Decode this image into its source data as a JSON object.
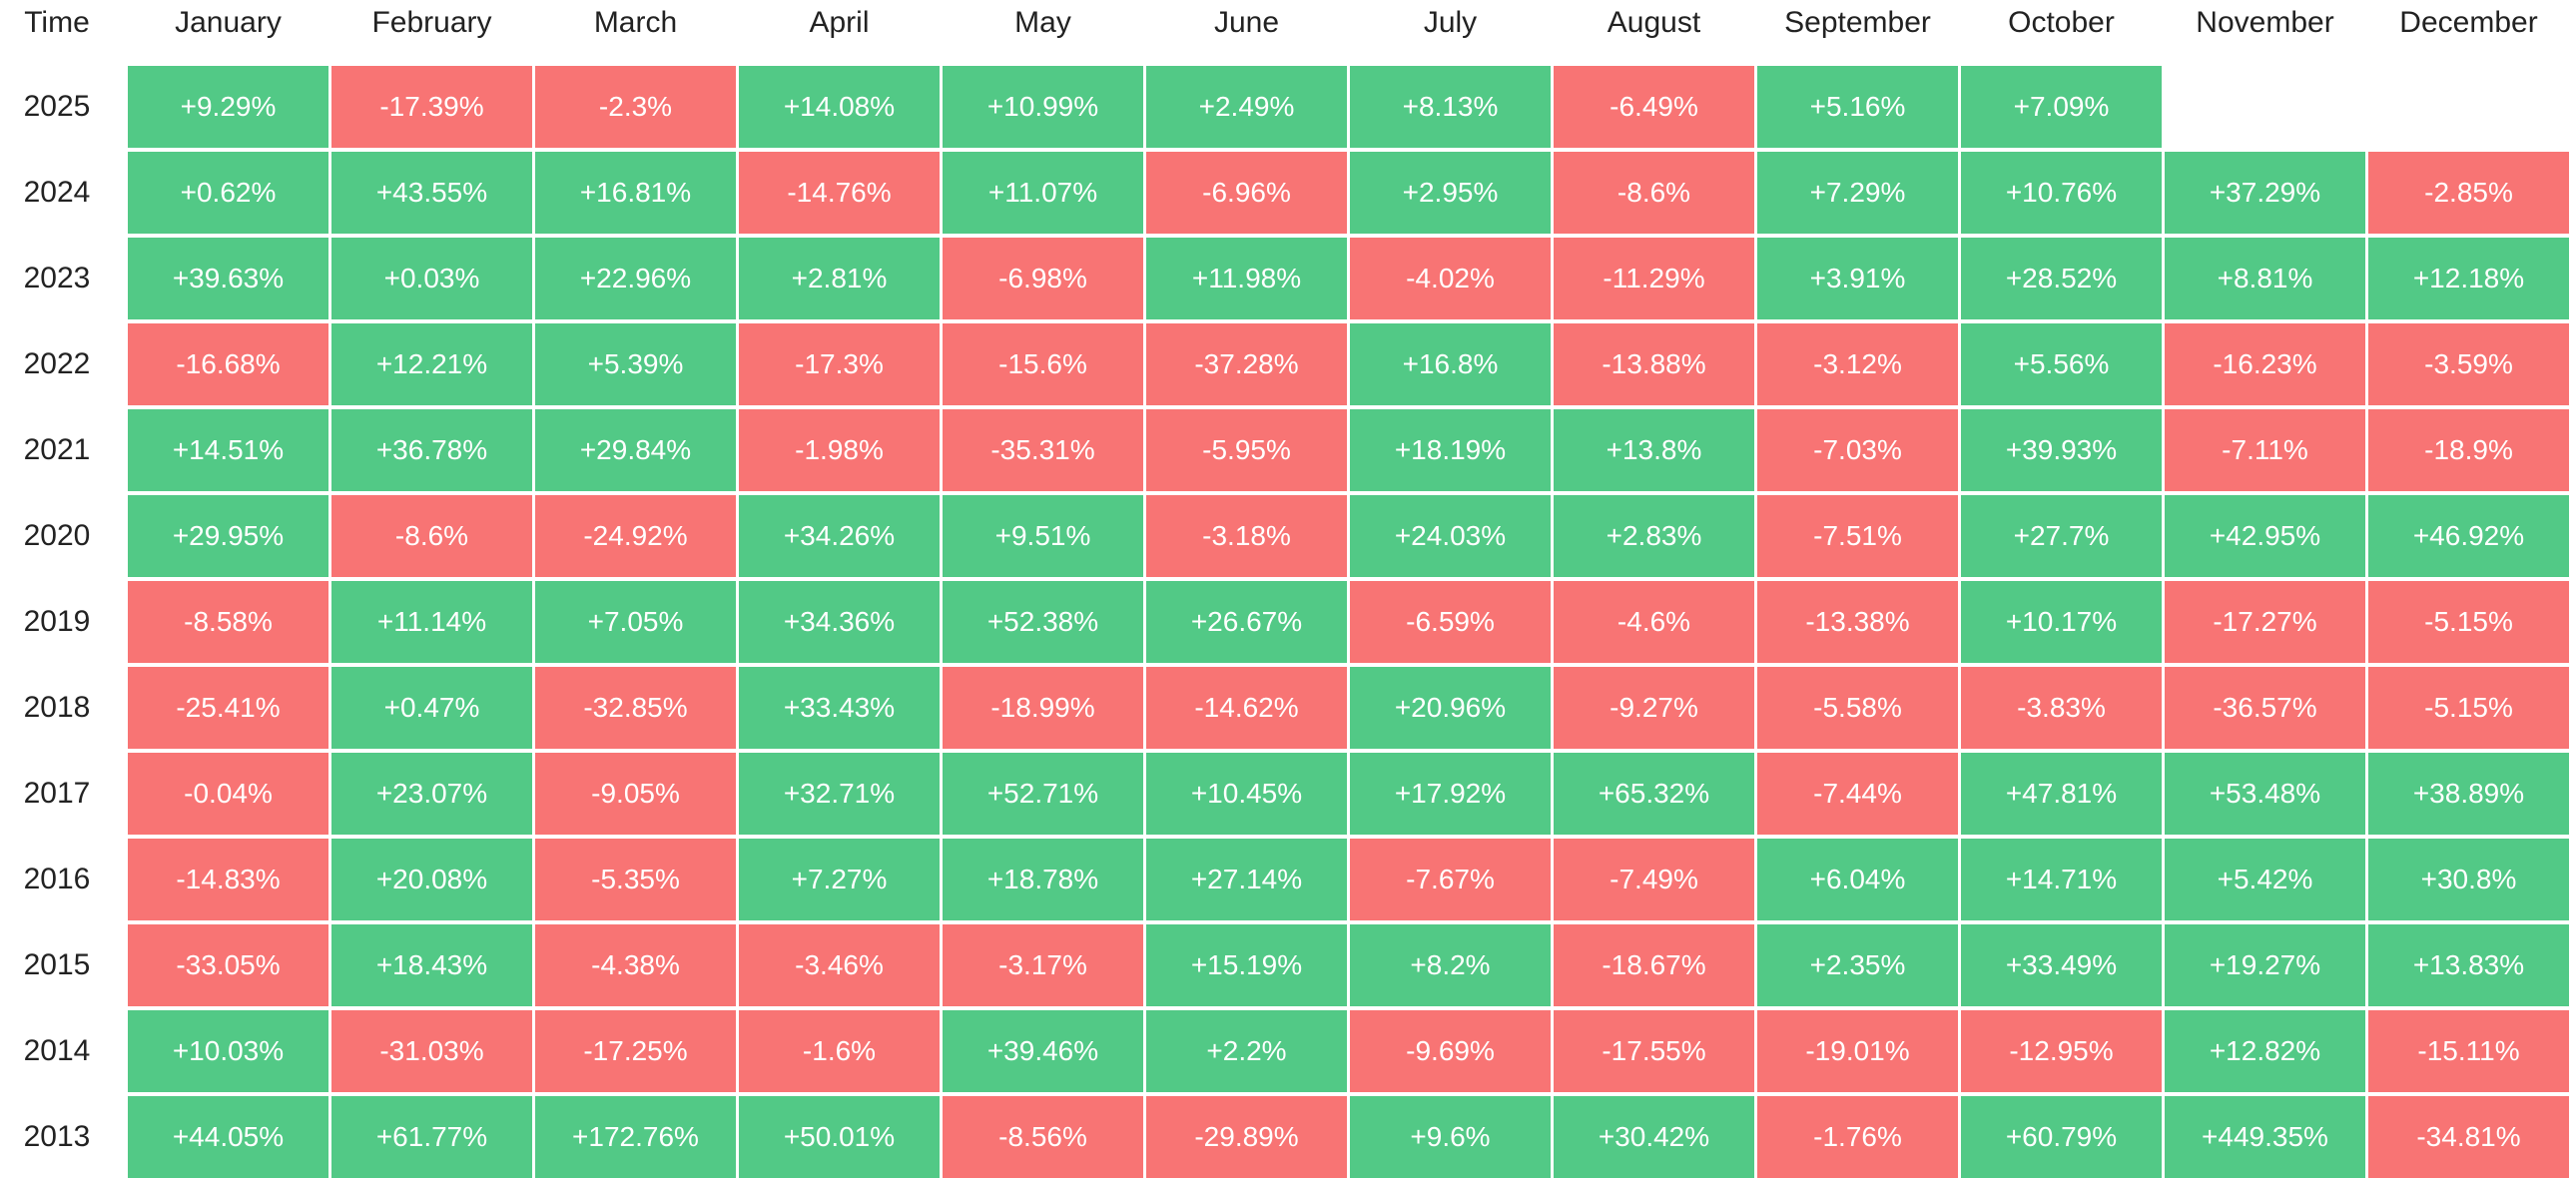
{
  "table": {
    "header": [
      "Time",
      "January",
      "February",
      "March",
      "April",
      "May",
      "June",
      "July",
      "August",
      "September",
      "October",
      "November",
      "December"
    ],
    "colors": {
      "up": "#52c986",
      "down": "#f87474"
    },
    "rows": [
      {
        "year": "2025",
        "cells": [
          "+9.29%",
          "-17.39%",
          "-2.3%",
          "+14.08%",
          "+10.99%",
          "+2.49%",
          "+8.13%",
          "-6.49%",
          "+5.16%",
          "+7.09%"
        ]
      },
      {
        "year": "2024",
        "cells": [
          "+0.62%",
          "+43.55%",
          "+16.81%",
          "-14.76%",
          "+11.07%",
          "-6.96%",
          "+2.95%",
          "-8.6%",
          "+7.29%",
          "+10.76%",
          "+37.29%",
          "-2.85%"
        ]
      },
      {
        "year": "2023",
        "cells": [
          "+39.63%",
          "+0.03%",
          "+22.96%",
          "+2.81%",
          "-6.98%",
          "+11.98%",
          "-4.02%",
          "-11.29%",
          "+3.91%",
          "+28.52%",
          "+8.81%",
          "+12.18%"
        ]
      },
      {
        "year": "2022",
        "cells": [
          "-16.68%",
          "+12.21%",
          "+5.39%",
          "-17.3%",
          "-15.6%",
          "-37.28%",
          "+16.8%",
          "-13.88%",
          "-3.12%",
          "+5.56%",
          "-16.23%",
          "-3.59%"
        ]
      },
      {
        "year": "2021",
        "cells": [
          "+14.51%",
          "+36.78%",
          "+29.84%",
          "-1.98%",
          "-35.31%",
          "-5.95%",
          "+18.19%",
          "+13.8%",
          "-7.03%",
          "+39.93%",
          "-7.11%",
          "-18.9%"
        ]
      },
      {
        "year": "2020",
        "cells": [
          "+29.95%",
          "-8.6%",
          "-24.92%",
          "+34.26%",
          "+9.51%",
          "-3.18%",
          "+24.03%",
          "+2.83%",
          "-7.51%",
          "+27.7%",
          "+42.95%",
          "+46.92%"
        ]
      },
      {
        "year": "2019",
        "cells": [
          "-8.58%",
          "+11.14%",
          "+7.05%",
          "+34.36%",
          "+52.38%",
          "+26.67%",
          "-6.59%",
          "-4.6%",
          "-13.38%",
          "+10.17%",
          "-17.27%",
          "-5.15%"
        ]
      },
      {
        "year": "2018",
        "cells": [
          "-25.41%",
          "+0.47%",
          "-32.85%",
          "+33.43%",
          "-18.99%",
          "-14.62%",
          "+20.96%",
          "-9.27%",
          "-5.58%",
          "-3.83%",
          "-36.57%",
          "-5.15%"
        ]
      },
      {
        "year": "2017",
        "cells": [
          "-0.04%",
          "+23.07%",
          "-9.05%",
          "+32.71%",
          "+52.71%",
          "+10.45%",
          "+17.92%",
          "+65.32%",
          "-7.44%",
          "+47.81%",
          "+53.48%",
          "+38.89%"
        ]
      },
      {
        "year": "2016",
        "cells": [
          "-14.83%",
          "+20.08%",
          "-5.35%",
          "+7.27%",
          "+18.78%",
          "+27.14%",
          "-7.67%",
          "-7.49%",
          "+6.04%",
          "+14.71%",
          "+5.42%",
          "+30.8%"
        ]
      },
      {
        "year": "2015",
        "cells": [
          "-33.05%",
          "+18.43%",
          "-4.38%",
          "-3.46%",
          "-3.17%",
          "+15.19%",
          "+8.2%",
          "-18.67%",
          "+2.35%",
          "+33.49%",
          "+19.27%",
          "+13.83%"
        ]
      },
      {
        "year": "2014",
        "cells": [
          "+10.03%",
          "-31.03%",
          "-17.25%",
          "-1.6%",
          "+39.46%",
          "+2.2%",
          "-9.69%",
          "-17.55%",
          "-19.01%",
          "-12.95%",
          "+12.82%",
          "-15.11%"
        ]
      },
      {
        "year": "2013",
        "cells": [
          "+44.05%",
          "+61.77%",
          "+172.76%",
          "+50.01%",
          "-8.56%",
          "-29.89%",
          "+9.6%",
          "+30.42%",
          "-1.76%",
          "+60.79%",
          "+449.35%",
          "-34.81%"
        ]
      }
    ]
  }
}
